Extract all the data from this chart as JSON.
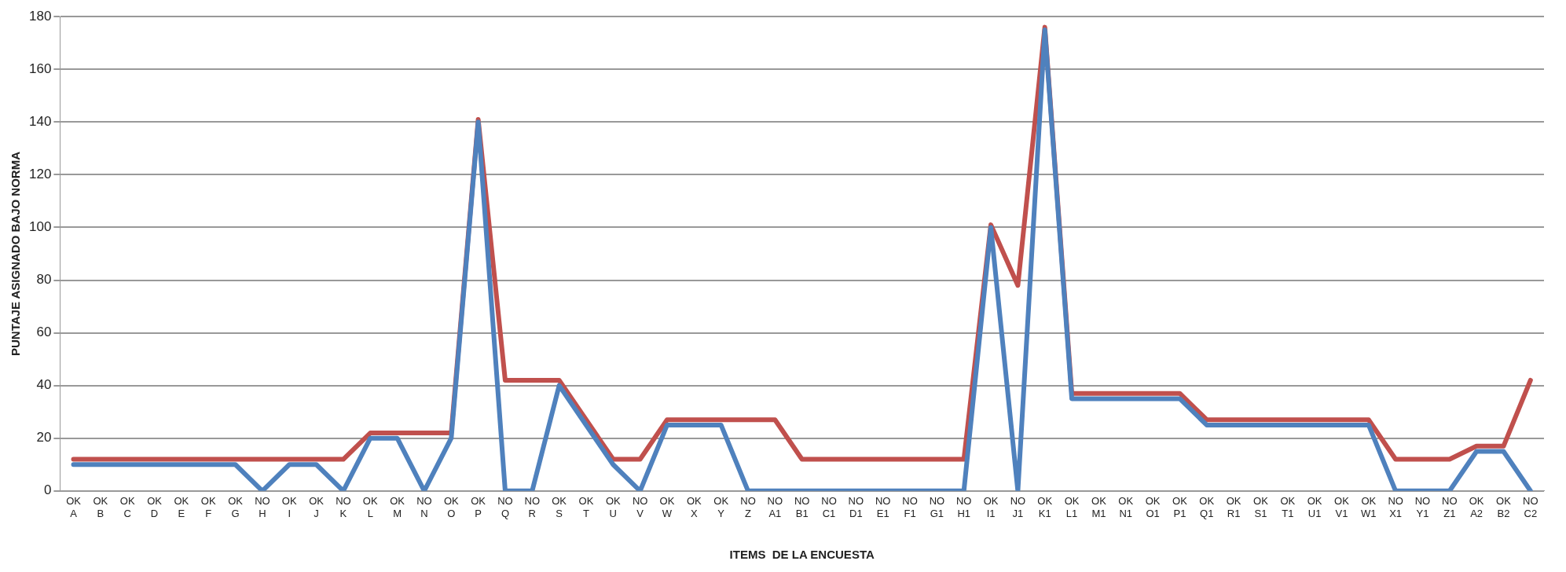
{
  "chart_data": {
    "type": "line",
    "xlabel": "ITEMS  DE LA ENCUESTA",
    "ylabel": "PUNTAJE ASIGNADO BAJO NORMA",
    "categories": [
      "OK\nA",
      "OK\nB",
      "OK\nC",
      "OK\nD",
      "OK\nE",
      "OK\nF",
      "OK\nG",
      "NO\nH",
      "OK\nI",
      "OK\nJ",
      "NO\nK",
      "OK\nL",
      "OK\nM",
      "NO\nN",
      "OK\nO",
      "OK\nP",
      "NO\nQ",
      "NO\nR",
      "OK\nS",
      "OK\nT",
      "OK\nU",
      "NO\nV",
      "OK\nW",
      "OK\nX",
      "OK\nY",
      "NO\nZ",
      "NO\nA1",
      "NO\nB1",
      "NO\nC1",
      "NO\nD1",
      "NO\nE1",
      "NO\nF1",
      "NO\nG1",
      "NO\nH1",
      "OK\nI1",
      "NO\nJ1",
      "OK\nK1",
      "OK\nL1",
      "OK\nM1",
      "OK\nN1",
      "OK\nO1",
      "OK\nP1",
      "OK\nQ1",
      "OK\nR1",
      "OK\nS1",
      "OK\nT1",
      "OK\nU1",
      "OK\nV1",
      "OK\nW1",
      "NO\nX1",
      "NO\nY1",
      "NO\nZ1",
      "OK\nA2",
      "OK\nB2",
      "NO\nC2"
    ],
    "series": [
      {
        "color": "#c0504d",
        "values": [
          12,
          12,
          12,
          12,
          12,
          12,
          12,
          12,
          12,
          12,
          12,
          22,
          22,
          22,
          22,
          141,
          42,
          42,
          42,
          27,
          12,
          12,
          27,
          27,
          27,
          27,
          27,
          12,
          12,
          12,
          12,
          12,
          12,
          12,
          101,
          78,
          176,
          37,
          37,
          37,
          37,
          37,
          27,
          27,
          27,
          27,
          27,
          27,
          27,
          12,
          12,
          12,
          17,
          17,
          42
        ]
      },
      {
        "color": "#4f81bd",
        "values": [
          10,
          10,
          10,
          10,
          10,
          10,
          10,
          0,
          10,
          10,
          0,
          20,
          20,
          0,
          20,
          140,
          0,
          0,
          40,
          25,
          10,
          0,
          25,
          25,
          25,
          0,
          0,
          0,
          0,
          0,
          0,
          0,
          0,
          0,
          100,
          0,
          175,
          35,
          35,
          35,
          35,
          35,
          25,
          25,
          25,
          25,
          25,
          25,
          25,
          0,
          0,
          0,
          15,
          15,
          0
        ]
      }
    ],
    "ylim": [
      0,
      180
    ],
    "yticks": [
      0,
      20,
      40,
      60,
      80,
      100,
      120,
      140,
      160,
      180
    ],
    "grid": "y",
    "legend": false,
    "marker": "none",
    "line_style": "solid"
  }
}
